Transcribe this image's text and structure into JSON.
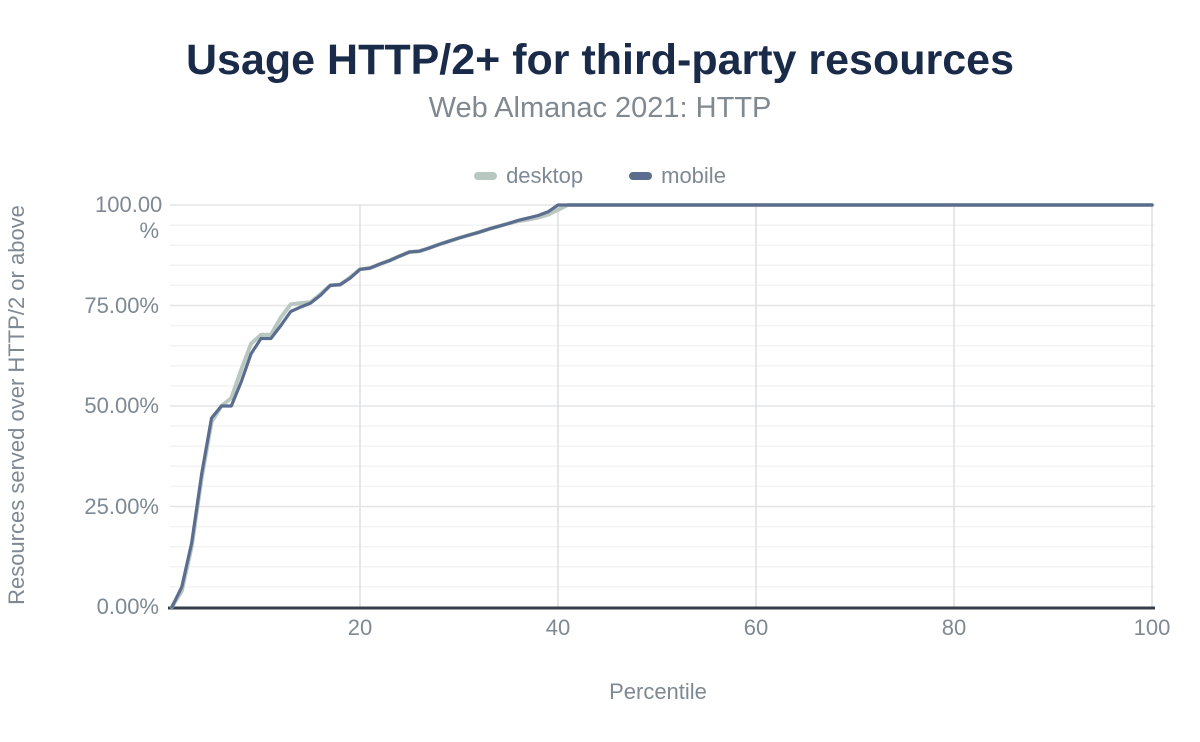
{
  "colors": {
    "title": "#1a2b49",
    "subtitle": "#80898f",
    "axis_text": "#7e8994",
    "grid_minor": "#f3f3f3",
    "grid_major": "#e4e5e7",
    "grid_vertical": "#dedfe1",
    "axis_line": "#353f49",
    "background": "#ffffff"
  },
  "chart_data": {
    "type": "line",
    "title": "Usage HTTP/2+ for third-party resources",
    "subtitle": "Web Almanac 2021: HTTP",
    "xlabel": "Percentile",
    "ylabel": "Resources served over HTTP/2 or above",
    "xlim": [
      0,
      100
    ],
    "ylim": [
      0,
      100
    ],
    "x_ticks": [
      20,
      40,
      60,
      80,
      100
    ],
    "y_ticks": [
      {
        "value": 0,
        "label": "0.00%"
      },
      {
        "value": 25,
        "label": "25.00%"
      },
      {
        "value": 50,
        "label": "50.00%"
      },
      {
        "value": 75,
        "label": "75.00%"
      },
      {
        "value": 100,
        "label": "100.00 %"
      }
    ],
    "y_minor_step": 5,
    "grid": "horizontal-minor+major, vertical-major",
    "legend_position": "top",
    "x": {
      "from": 1,
      "to": 100,
      "step": 1,
      "unit": "percentile"
    },
    "series": [
      {
        "name": "desktop",
        "color": "#b9c7c1",
        "stroke_width": 4,
        "values": [
          0,
          4,
          15,
          32,
          46,
          50,
          52,
          59,
          65.5,
          67.7,
          67.7,
          72,
          75.3,
          75.6,
          75.8,
          77.8,
          80,
          80.2,
          82,
          84,
          84.3,
          85.3,
          86.2,
          87.3,
          88.3,
          88.5,
          89.3,
          90.2,
          91,
          91.8,
          92.5,
          93.2,
          94,
          94.7,
          95.4,
          96,
          96.4,
          96.9,
          97.6,
          98.8,
          100,
          100,
          100,
          100,
          100,
          100,
          100,
          100,
          100,
          100,
          100,
          100,
          100,
          100,
          100,
          100,
          100,
          100,
          100,
          100,
          100,
          100,
          100,
          100,
          100,
          100,
          100,
          100,
          100,
          100,
          100,
          100,
          100,
          100,
          100,
          100,
          100,
          100,
          100,
          100,
          100,
          100,
          100,
          100,
          100,
          100,
          100,
          100,
          100,
          100,
          100,
          100,
          100,
          100,
          100,
          100,
          100,
          100,
          100,
          100
        ]
      },
      {
        "name": "mobile",
        "color": "#5b6d8f",
        "stroke_width": 3.2,
        "values": [
          0,
          5,
          16,
          33,
          47,
          50,
          50,
          56,
          63,
          66.8,
          66.8,
          70,
          73.5,
          74.6,
          75.6,
          77.5,
          80,
          80.2,
          81.8,
          84,
          84.3,
          85.3,
          86.2,
          87.3,
          88.3,
          88.5,
          89.3,
          90.2,
          91,
          91.8,
          92.5,
          93.2,
          94,
          94.7,
          95.4,
          96.2,
          96.8,
          97.4,
          98.3,
          100,
          100,
          100,
          100,
          100,
          100,
          100,
          100,
          100,
          100,
          100,
          100,
          100,
          100,
          100,
          100,
          100,
          100,
          100,
          100,
          100,
          100,
          100,
          100,
          100,
          100,
          100,
          100,
          100,
          100,
          100,
          100,
          100,
          100,
          100,
          100,
          100,
          100,
          100,
          100,
          100,
          100,
          100,
          100,
          100,
          100,
          100,
          100,
          100,
          100,
          100,
          100,
          100,
          100,
          100,
          100,
          100,
          100,
          100,
          100,
          100
        ]
      }
    ]
  }
}
